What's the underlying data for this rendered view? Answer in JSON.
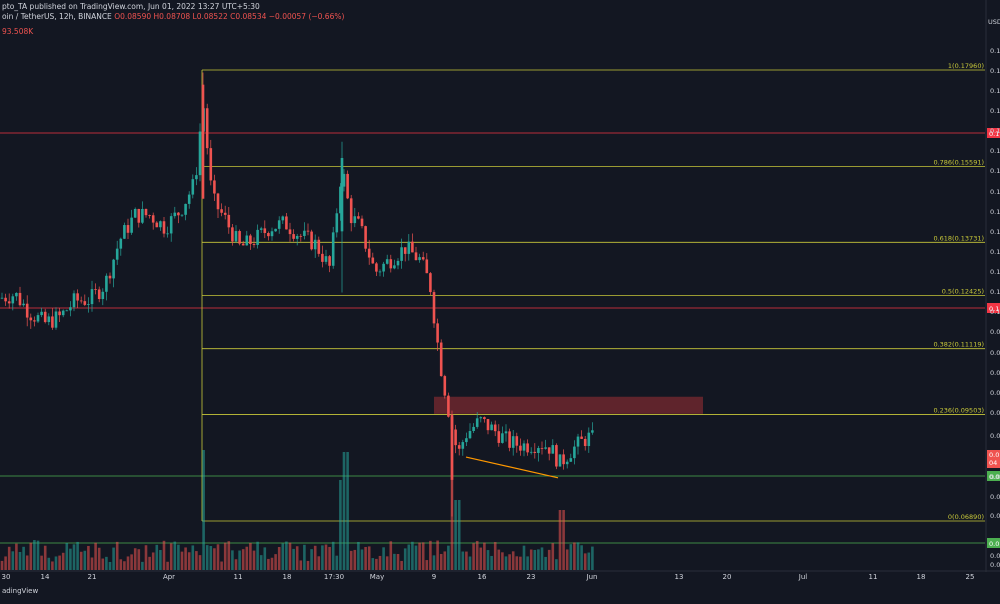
{
  "header": {
    "published_line": "pto_TA published on TradingView.com, Jun 01, 2022 13:27 UTC+5:30",
    "symbol_line": "oin / TetherUS, 12h, BINANCE",
    "ohlc": "O0.08590 H0.08708 L0.08522 C0.08534 −0.00057 (−0.66%)",
    "volume_line": "93.508K",
    "currency": "USD"
  },
  "footer": {
    "brand": "adingView"
  },
  "colors": {
    "background": "#131722",
    "up": "#26a69a",
    "down": "#ef5350",
    "fib": "#c9c93a",
    "resistance": "#f23645",
    "support": "#4caf50",
    "trendline": "#ff9800",
    "zone": "#7a2a30"
  },
  "chart_data": {
    "type": "candlestick",
    "x_tick_labels": [
      "30",
      "14",
      "21",
      "Apr",
      "11",
      "18",
      "17:30",
      "May",
      "9",
      "16",
      "23",
      "Jun",
      "13",
      "20",
      "Jul",
      "11",
      "18",
      "25"
    ],
    "fibonacci": [
      {
        "label": "1(0.17960)",
        "value": 0.1796
      },
      {
        "label": "0.786(0.15591)",
        "value": 0.15591
      },
      {
        "label": "0.618(0.13731)",
        "value": 0.13731
      },
      {
        "label": "0.5(0.12425)",
        "value": 0.12425
      },
      {
        "label": "0.382(0.11119)",
        "value": 0.11119
      },
      {
        "label": "0.236(0.09503)",
        "value": 0.09503
      },
      {
        "label": "0(0.06890)",
        "value": 0.0689
      }
    ],
    "price_axis_labels": [
      "0.1",
      "0.1",
      "0.1",
      "0.1",
      "0.1",
      "0.1",
      "0.1",
      "0.1",
      "0.1",
      "0.1",
      "0.1",
      "0.1",
      "0.1",
      "0.1",
      "0.0",
      "0.0",
      "0.0",
      "0.0",
      "0.0",
      "0.0",
      "0.0",
      "0.0",
      "0.0"
    ],
    "horizontal_levels": [
      {
        "kind": "resistance",
        "label": "0.1"
      },
      {
        "kind": "resistance",
        "label": "0.1"
      },
      {
        "kind": "support",
        "label": "0.0"
      },
      {
        "kind": "support",
        "label": "0.0"
      }
    ],
    "current_price_labels": [
      "0.0",
      "04"
    ],
    "supply_zone": {
      "from_price": 0.0952,
      "to_price": 0.0994
    },
    "trendline": {
      "from_price": 0.0846,
      "to_price": 0.0795
    }
  }
}
